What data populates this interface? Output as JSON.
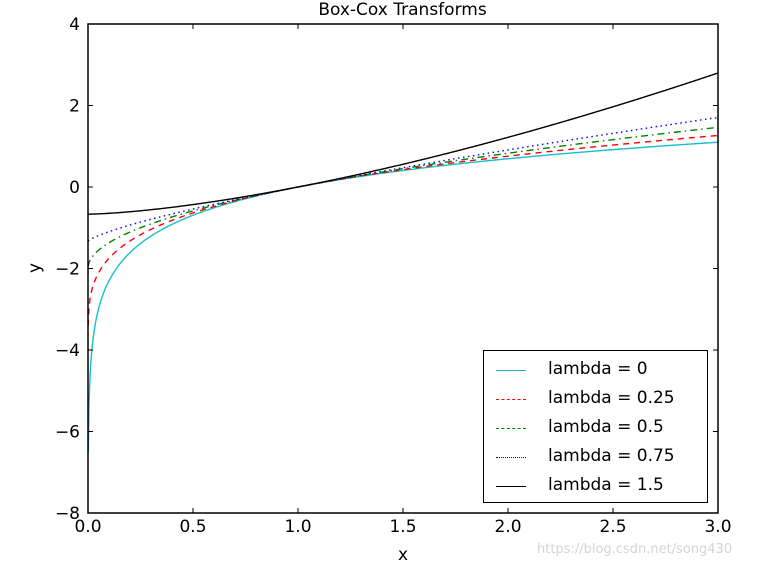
{
  "chart_data": {
    "type": "line",
    "title": "Box-Cox Transforms",
    "xlabel": "x",
    "ylabel": "y",
    "xlim": [
      0.0,
      3.0
    ],
    "ylim": [
      -8,
      4
    ],
    "xticks": [
      "0.0",
      "0.5",
      "1.0",
      "1.5",
      "2.0",
      "2.5",
      "3.0"
    ],
    "yticks": [
      "−8",
      "−6",
      "−4",
      "−2",
      "0",
      "2",
      "4"
    ],
    "grid": false,
    "legend_position": "lower right",
    "series": [
      {
        "name": "lambda = 0",
        "lambda": 0,
        "color": "#17becf",
        "style": "solid",
        "x": [
          0.01,
          0.05,
          0.1,
          0.25,
          0.5,
          1.0,
          1.5,
          2.0,
          2.5,
          3.0
        ],
        "values": [
          -4.61,
          -3.0,
          -2.3,
          -1.39,
          -0.69,
          0.0,
          0.41,
          0.69,
          0.92,
          1.1
        ]
      },
      {
        "name": "lambda = 0.25",
        "lambda": 0.25,
        "color": "#ff0000",
        "style": "dashed",
        "x": [
          0.01,
          0.05,
          0.1,
          0.25,
          0.5,
          1.0,
          1.5,
          2.0,
          2.5,
          3.0
        ],
        "values": [
          -2.74,
          -2.13,
          -1.75,
          -1.17,
          -0.64,
          0.0,
          0.43,
          0.76,
          1.03,
          1.26
        ]
      },
      {
        "name": "lambda = 0.5",
        "lambda": 0.5,
        "color": "#008000",
        "style": "dashdot",
        "x": [
          0.01,
          0.05,
          0.1,
          0.25,
          0.5,
          1.0,
          1.5,
          2.0,
          2.5,
          3.0
        ],
        "values": [
          -1.8,
          -1.55,
          -1.37,
          -1.0,
          -0.59,
          0.0,
          0.45,
          0.83,
          1.16,
          1.46
        ]
      },
      {
        "name": "lambda = 0.75",
        "lambda": 0.75,
        "color": "#0000ff",
        "style": "dotted",
        "x": [
          0.01,
          0.05,
          0.1,
          0.25,
          0.5,
          1.0,
          1.5,
          2.0,
          2.5,
          3.0
        ],
        "values": [
          -1.29,
          -1.19,
          -1.09,
          -0.86,
          -0.54,
          0.0,
          0.47,
          0.91,
          1.31,
          1.71
        ]
      },
      {
        "name": "lambda = 1.5",
        "lambda": 1.5,
        "color": "#000000",
        "style": "solid",
        "x": [
          0.0,
          0.25,
          0.5,
          1.0,
          1.5,
          2.0,
          2.5,
          3.0
        ],
        "values": [
          -0.67,
          -0.58,
          -0.43,
          0.0,
          0.56,
          1.22,
          1.97,
          2.8
        ]
      }
    ]
  },
  "watermark": "https://blog.csdn.net/song430"
}
